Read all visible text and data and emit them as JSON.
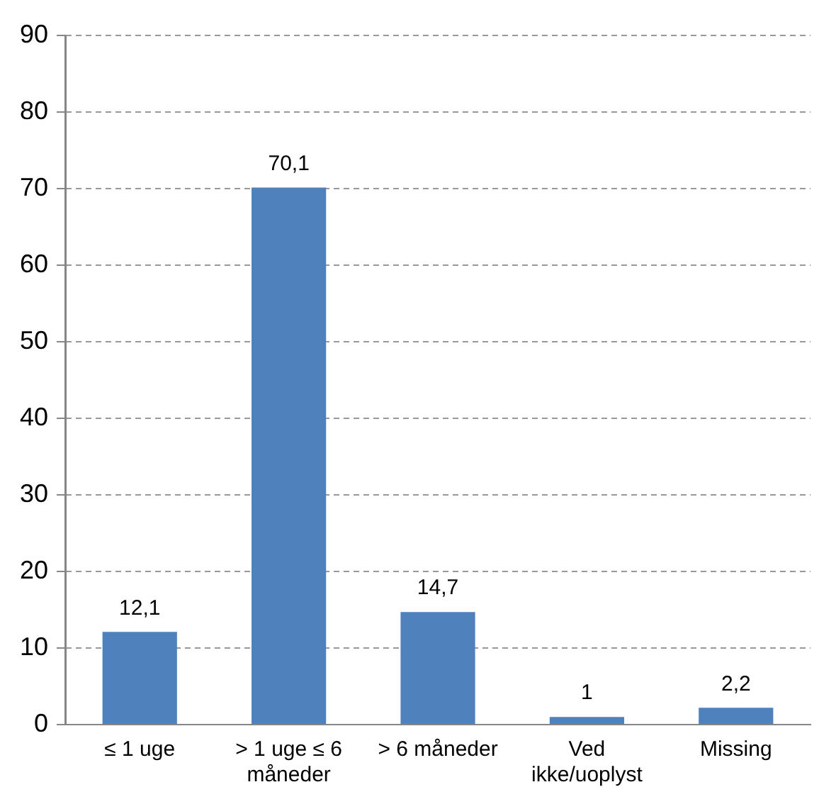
{
  "chart_data": {
    "type": "bar",
    "categories": [
      "≤ 1 uge",
      "> 1 uge ≤ 6 måneder",
      "> 6 måneder",
      "Ved ikke/uoplyst",
      "Missing"
    ],
    "values": [
      12.1,
      70.1,
      14.7,
      1,
      2.2
    ],
    "value_labels": [
      "12,1",
      "70,1",
      "14,7",
      "1",
      "2,2"
    ],
    "color": "#4f81bd",
    "ylim": [
      0,
      90
    ],
    "yticks": [
      0,
      10,
      20,
      30,
      40,
      50,
      60,
      70,
      80,
      90
    ],
    "grid": "y",
    "legend": false
  }
}
